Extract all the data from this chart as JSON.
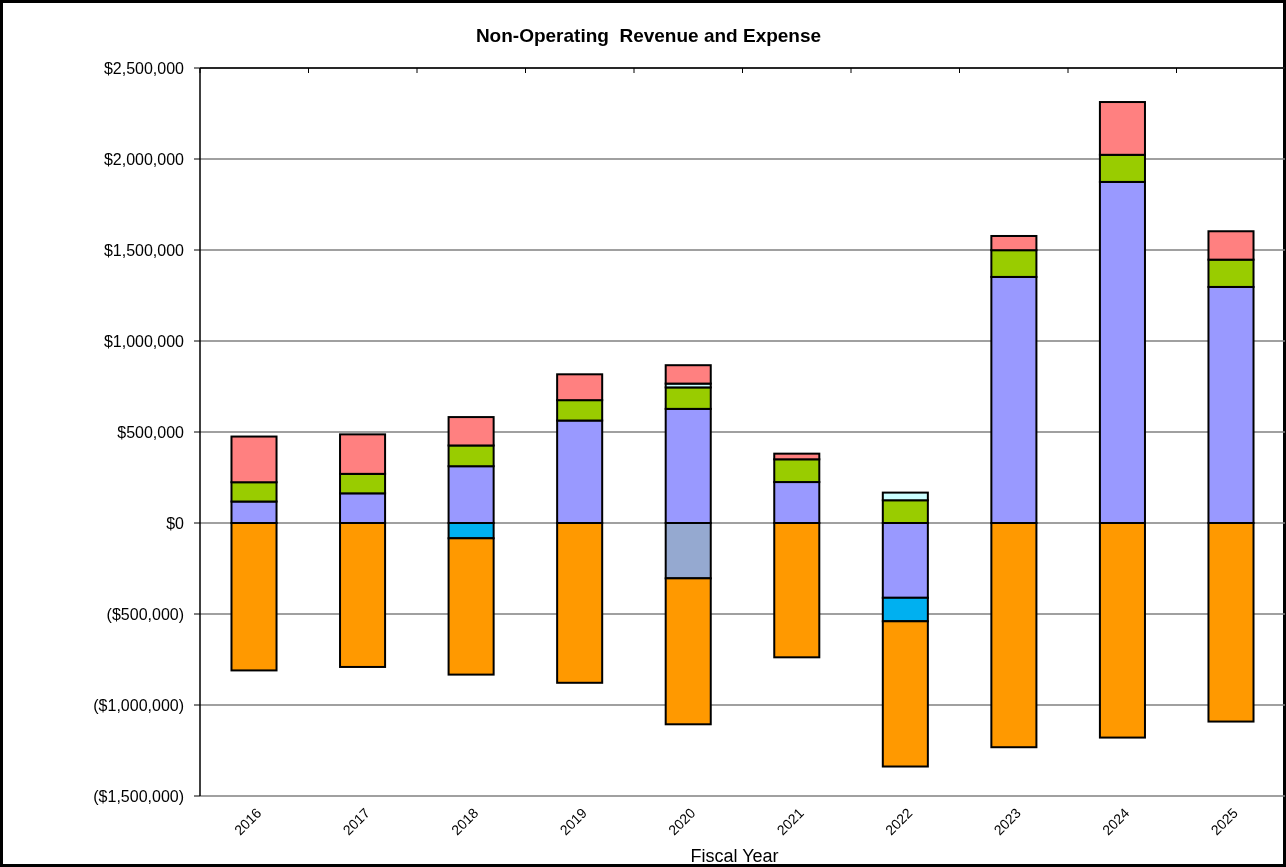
{
  "chart_data": {
    "type": "bar",
    "title": "Non-Operating  Revenue and Expense",
    "xlabel": "Fiscal Year",
    "categories": [
      "2016",
      "2017",
      "2018",
      "2019",
      "2020",
      "2021",
      "2022",
      "2023",
      "2024",
      "2025"
    ],
    "stacked": true,
    "series": [
      {
        "color": "#9999ff",
        "values": [
          118000,
          163000,
          312000,
          563000,
          627000,
          225000,
          -411000,
          1352000,
          1874000,
          1297000
        ]
      },
      {
        "color": "#99cc00",
        "values": [
          106000,
          107000,
          114000,
          112000,
          118000,
          125000,
          125000,
          147000,
          149000,
          150000
        ]
      },
      {
        "color": "#ccffff",
        "values": [
          null,
          null,
          null,
          null,
          21000,
          null,
          42000,
          null,
          null,
          null
        ]
      },
      {
        "color": "#ff8080",
        "values": [
          251000,
          217000,
          156000,
          142000,
          101000,
          31000,
          null,
          78000,
          290000,
          156000
        ]
      },
      {
        "color": "#00b0f0",
        "values": [
          null,
          null,
          -84000,
          null,
          null,
          null,
          -129000,
          null,
          null,
          null
        ]
      },
      {
        "color": "#95a9d0",
        "values": [
          null,
          null,
          null,
          null,
          -304000,
          null,
          null,
          null,
          null,
          null
        ]
      },
      {
        "color": "#ff9900",
        "values": [
          -810000,
          -791000,
          -749000,
          -878000,
          -802000,
          -738000,
          -798000,
          -1232000,
          -1179000,
          -1091000
        ]
      }
    ],
    "ylim": [
      -1500000,
      2500000
    ],
    "yticks": [
      {
        "value": -1500000,
        "label": "($1,500,000)"
      },
      {
        "value": -1000000,
        "label": "($1,000,000)"
      },
      {
        "value": -500000,
        "label": "($500,000)"
      },
      {
        "value": 0,
        "label": "$0"
      },
      {
        "value": 500000,
        "label": "$500,000"
      },
      {
        "value": 1000000,
        "label": "$1,000,000"
      },
      {
        "value": 1500000,
        "label": "$1,500,000"
      },
      {
        "value": 2000000,
        "label": "$2,000,000"
      },
      {
        "value": 2500000,
        "label": "$2,500,000"
      }
    ],
    "grid": "y"
  }
}
